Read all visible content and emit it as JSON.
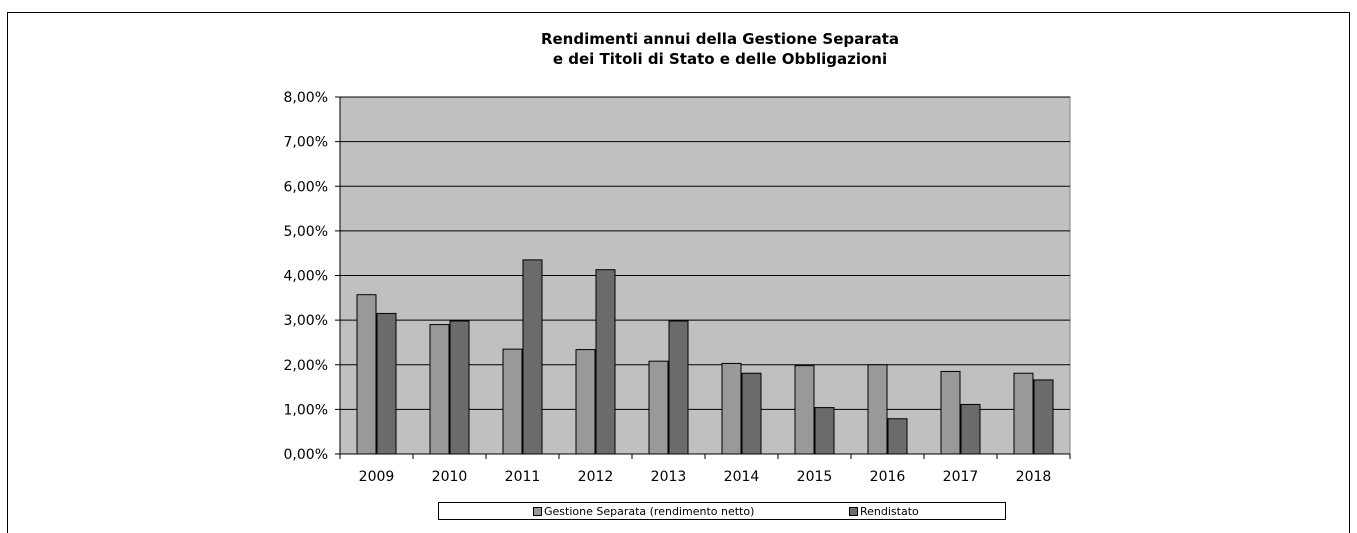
{
  "chart_data": {
    "type": "bar",
    "title_lines": [
      "Rendimenti annui della Gestione Separata",
      "e dei Titoli di Stato e delle Obbligazioni"
    ],
    "categories": [
      "2009",
      "2010",
      "2011",
      "2012",
      "2013",
      "2014",
      "2015",
      "2016",
      "2017",
      "2018"
    ],
    "series": [
      {
        "name": "Gestione Separata (rendimento netto)",
        "color": "#999999",
        "values": [
          3.57,
          2.9,
          2.35,
          2.34,
          2.08,
          2.03,
          1.98,
          2.0,
          1.85,
          1.81
        ]
      },
      {
        "name": "Rendistato",
        "color": "#6b6b6b",
        "values": [
          3.15,
          2.98,
          4.35,
          4.13,
          2.98,
          1.81,
          1.04,
          0.79,
          1.11,
          1.66
        ]
      }
    ],
    "ylim": [
      0,
      8
    ],
    "yticks": [
      "0,00%",
      "1,00%",
      "2,00%",
      "3,00%",
      "4,00%",
      "5,00%",
      "6,00%",
      "7,00%",
      "8,00%"
    ],
    "ytick_values": [
      0,
      1,
      2,
      3,
      4,
      5,
      6,
      7,
      8
    ],
    "plot_background": "#c0c0c0",
    "grid": true,
    "legend_position": "bottom"
  }
}
